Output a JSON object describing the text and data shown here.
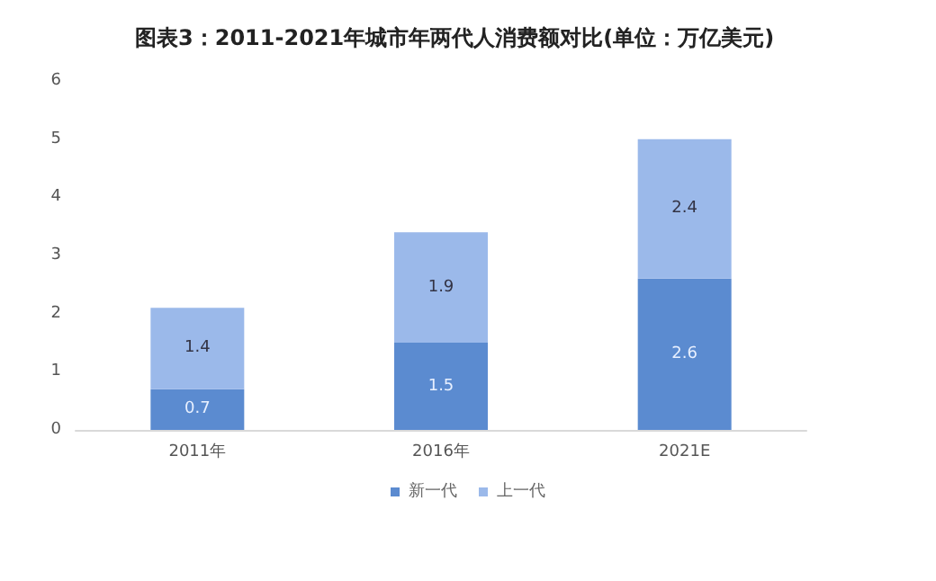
{
  "chart_data": {
    "type": "bar",
    "title": "图表3：2011-2021年城市年两代人消费额对比(单位：万亿美元)",
    "categories": [
      "2011年",
      "2016年",
      "2021E"
    ],
    "stacked": true,
    "series": [
      {
        "name": "新一代",
        "color": "#5b8bd0",
        "values": [
          0.7,
          1.5,
          2.6
        ]
      },
      {
        "name": "上一代",
        "color": "#9bb9ea",
        "values": [
          1.4,
          1.9,
          2.4
        ]
      }
    ],
    "ylim": [
      0,
      6
    ],
    "yticks": [
      0,
      1,
      2,
      3,
      4,
      5,
      6
    ],
    "grid": false,
    "legend": "bottom",
    "data_labels": true
  }
}
